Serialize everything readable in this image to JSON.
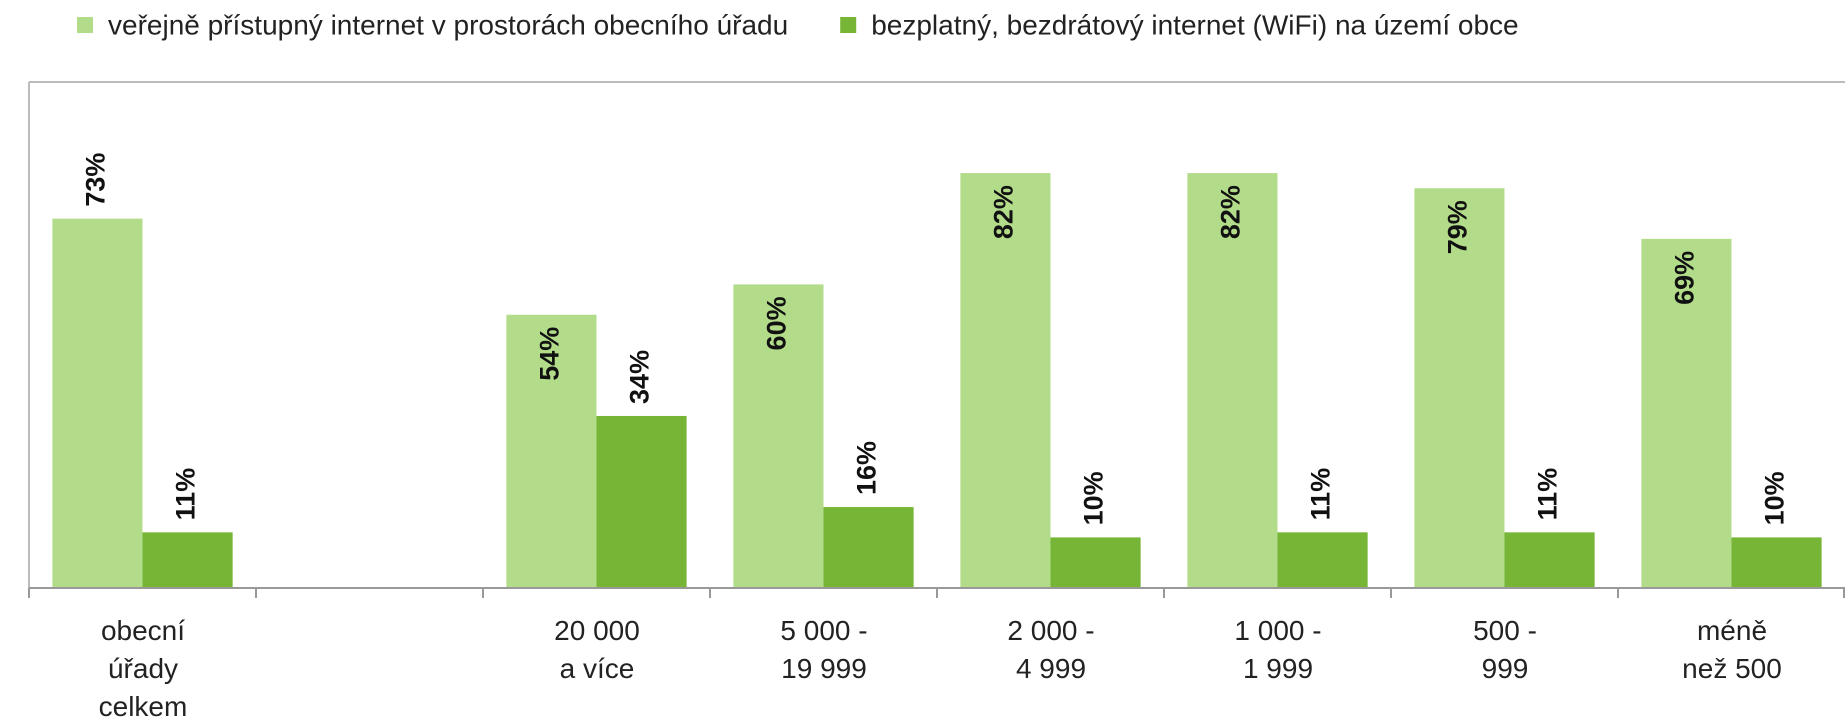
{
  "chart_data": {
    "type": "bar",
    "categories": [
      "obecní\núřady\ncelkem",
      null,
      "20 000\na více",
      "5 000 -\n19 999",
      "2 000 -\n4 999",
      "1 000 -\n1 999",
      "500 -\n999",
      "méně\nnež 500"
    ],
    "series": [
      {
        "name": "veřejně přístupný internet v prostorách obecního úřadu",
        "color": "#b3dc8a",
        "values": [
          73,
          null,
          54,
          60,
          82,
          82,
          79,
          69
        ],
        "value_labels": [
          "73%",
          null,
          "54%",
          "60%",
          "82%",
          "82%",
          "79%",
          "69%"
        ]
      },
      {
        "name": "bezplatný, bezdrátový internet (WiFi) na území obce",
        "color": "#76b535",
        "values": [
          11,
          null,
          34,
          16,
          10,
          11,
          11,
          10
        ],
        "value_labels": [
          "11%",
          null,
          "34%",
          "16%",
          "10%",
          "11%",
          "11%",
          "10%"
        ]
      }
    ],
    "ylim": [
      0,
      100
    ],
    "legend": "top"
  }
}
